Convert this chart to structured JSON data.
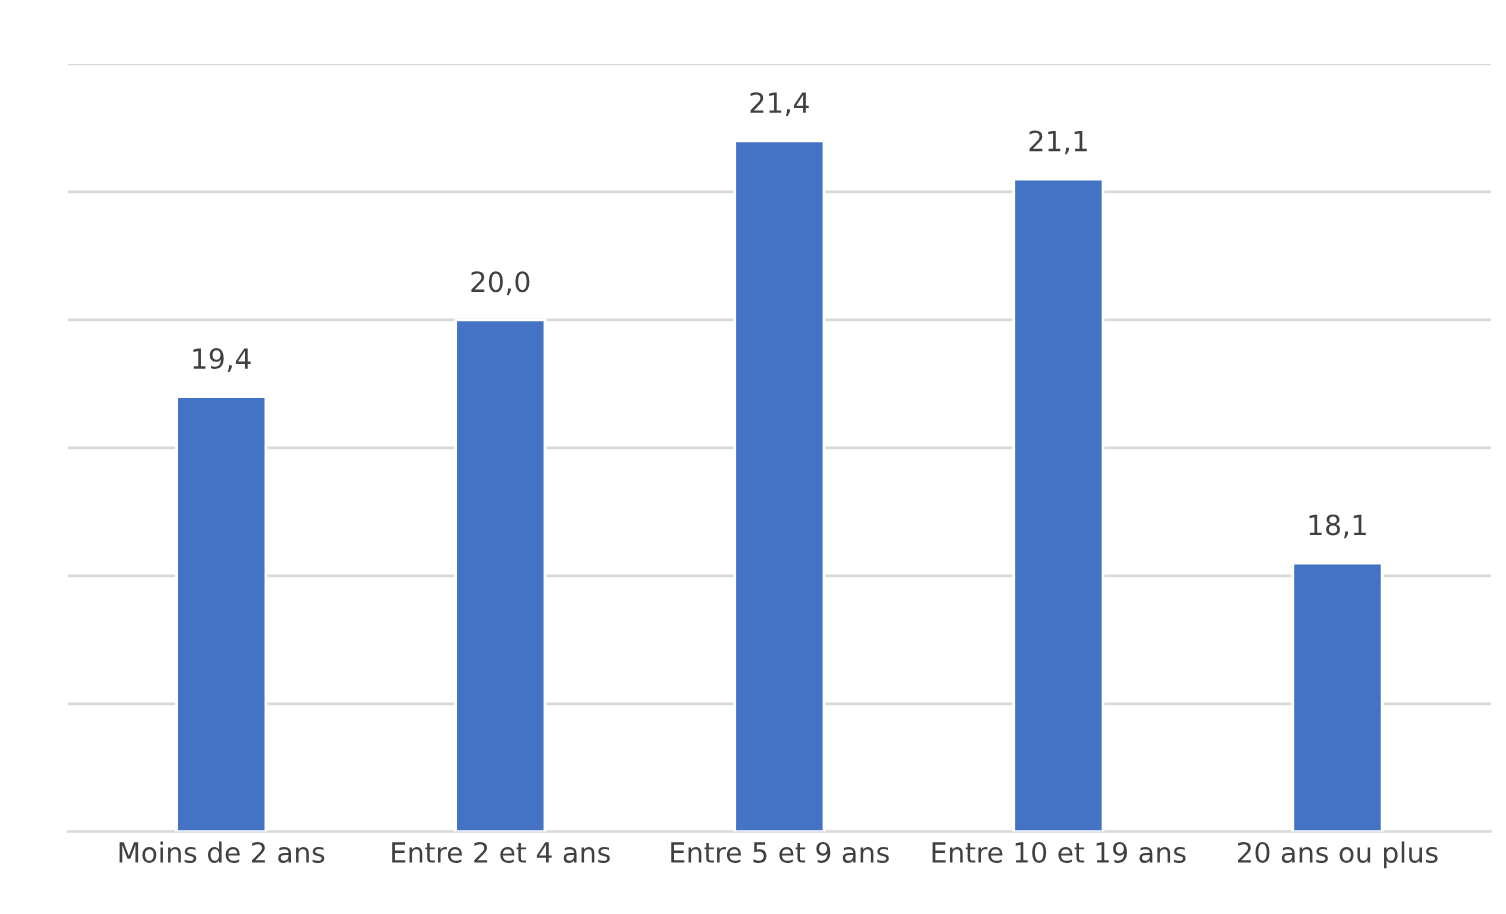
{
  "chart_data": {
    "type": "bar",
    "categories": [
      "Moins de 2 ans",
      "Entre 2 et 4 ans",
      "Entre 5 et 9 ans",
      "Entre 10 et 19 ans",
      "20 ans ou plus"
    ],
    "values": [
      19.4,
      20.0,
      21.4,
      21.1,
      18.1
    ],
    "value_labels": [
      "19,4",
      "20,0",
      "21,4",
      "21,1",
      "18,1"
    ],
    "color": "#4472c4",
    "ylim": [
      16,
      22
    ],
    "yticks": [
      {
        "value": 16,
        "label": null
      },
      {
        "value": 17,
        "label": null
      },
      {
        "value": 18,
        "label": null
      },
      {
        "value": 19,
        "label": null
      },
      {
        "value": 20,
        "label": null
      },
      {
        "value": 21,
        "label": null
      },
      {
        "value": 22,
        "label": null
      }
    ],
    "tick_labels": "x",
    "grid": "y",
    "legend": false
  }
}
